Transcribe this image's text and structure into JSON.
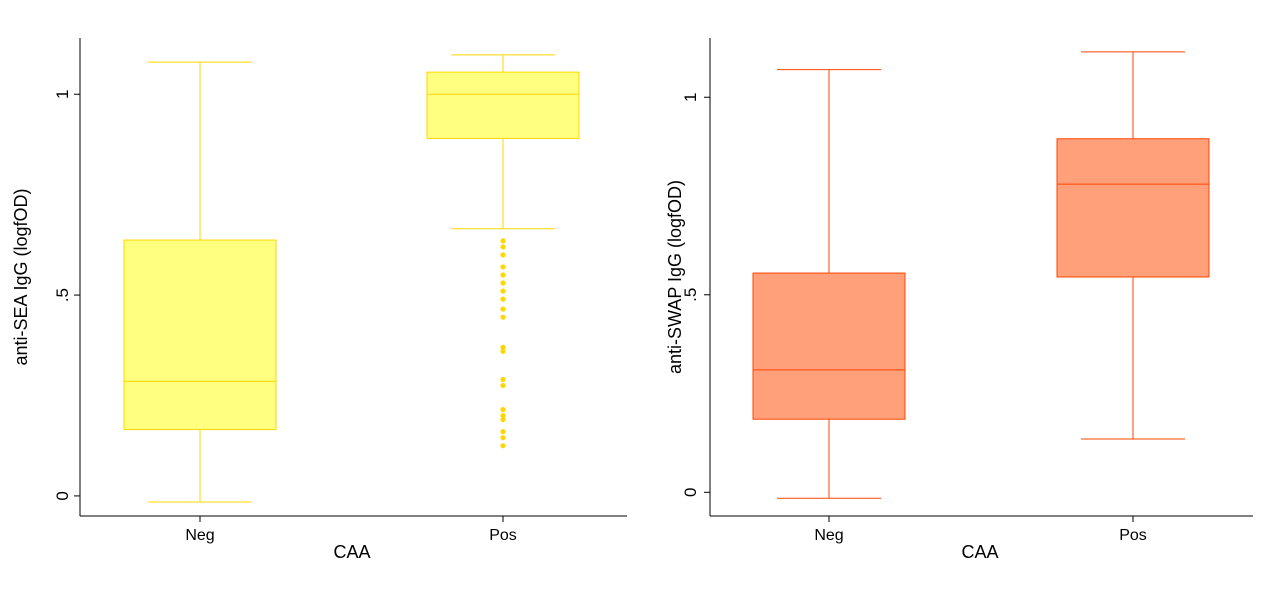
{
  "chart_data": [
    {
      "type": "box",
      "title": "",
      "xlabel": "CAA",
      "ylabel": "anti-SEA IgG (logfOD)",
      "ylim": [
        -0.05,
        1.14
      ],
      "yticks": [
        {
          "value": 0,
          "label": "0"
        },
        {
          "value": 0.5,
          "label": ".5"
        },
        {
          "value": 1,
          "label": "1"
        }
      ],
      "grid": false,
      "colors": {
        "fill": "#FFFF80",
        "stroke": "#FFD700",
        "outlier": "#FFD700"
      },
      "categories": [
        "Neg",
        "Pos"
      ],
      "boxes": [
        {
          "category": "Neg",
          "whisker_low": -0.015,
          "q1": 0.165,
          "median": 0.285,
          "q3": 0.637,
          "whisker_high": 1.08,
          "outliers": []
        },
        {
          "category": "Pos",
          "whisker_low": 0.665,
          "q1": 0.89,
          "median": 1.0,
          "q3": 1.055,
          "whisker_high": 1.098,
          "outliers": [
            0.635,
            0.62,
            0.6,
            0.57,
            0.55,
            0.53,
            0.51,
            0.49,
            0.465,
            0.445,
            0.37,
            0.36,
            0.29,
            0.275,
            0.215,
            0.2,
            0.19,
            0.16,
            0.145,
            0.125
          ]
        }
      ]
    },
    {
      "type": "box",
      "title": "",
      "xlabel": "CAA",
      "ylabel": "anti-SWAP IgG (logfOD)",
      "ylim": [
        -0.06,
        1.15
      ],
      "yticks": [
        {
          "value": 0,
          "label": "0"
        },
        {
          "value": 0.5,
          "label": ".5"
        },
        {
          "value": 1,
          "label": "1"
        }
      ],
      "grid": false,
      "colors": {
        "fill": "#FFA07A",
        "stroke": "#FF4500",
        "outlier": "#FF4500"
      },
      "categories": [
        "Neg",
        "Pos"
      ],
      "boxes": [
        {
          "category": "Neg",
          "whisker_low": -0.015,
          "q1": 0.185,
          "median": 0.31,
          "q3": 0.555,
          "whisker_high": 1.07,
          "outliers": []
        },
        {
          "category": "Pos",
          "whisker_low": 0.135,
          "q1": 0.545,
          "median": 0.78,
          "q3": 0.895,
          "whisker_high": 1.115,
          "outliers": []
        }
      ]
    }
  ]
}
